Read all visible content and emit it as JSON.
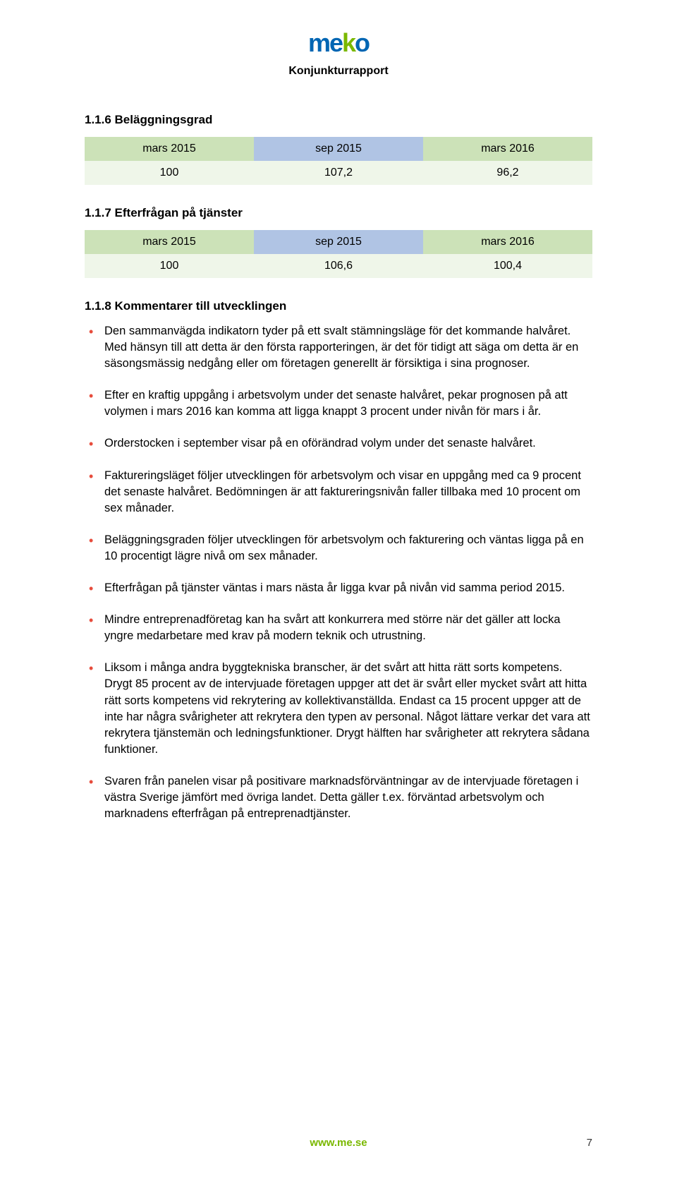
{
  "header": {
    "logo_letters": [
      "m",
      "e",
      "k",
      "o"
    ],
    "report_title": "Konjunkturrapport"
  },
  "section1": {
    "heading": "1.1.6 Beläggningsgrad",
    "columns": [
      "mars 2015",
      "sep 2015",
      "mars 2016"
    ],
    "values": [
      "100",
      "107,2",
      "96,2"
    ],
    "header_bg_outer": "#cce2b8",
    "header_bg_mid": "#b0c4e4",
    "row_bg": "#eff6e9"
  },
  "section2": {
    "heading": "1.1.7 Efterfrågan på tjänster",
    "columns": [
      "mars 2015",
      "sep 2015",
      "mars 2016"
    ],
    "values": [
      "100",
      "106,6",
      "100,4"
    ],
    "header_bg_outer": "#cce2b8",
    "header_bg_mid": "#b0c4e4",
    "row_bg": "#eff6e9"
  },
  "section3": {
    "heading": "1.1.8 Kommentarer till utvecklingen",
    "bullets": [
      "Den sammanvägda indikatorn tyder på ett svalt stämningsläge för det kommande halvåret. Med hänsyn till att detta är den första rapporteringen, är det för tidigt att säga om detta är en säsongsmässig nedgång eller om företagen generellt är försiktiga i sina prognoser.",
      "Efter en kraftig uppgång i arbetsvolym under det senaste halvåret, pekar prognosen på att volymen i mars 2016 kan komma att ligga knappt 3 procent under nivån för mars i år.",
      "Orderstocken i september visar på en oförändrad volym under det senaste halvåret.",
      "Faktureringsläget följer utvecklingen för arbetsvolym och visar en uppgång med ca 9 procent det senaste halvåret. Bedömningen är att faktureringsnivån faller tillbaka med 10 procent om sex månader.",
      "Beläggningsgraden följer utvecklingen för arbetsvolym och fakturering och väntas ligga på en 10 procentigt lägre nivå om sex månader.",
      "Efterfrågan på tjänster väntas i mars nästa år ligga kvar på nivån vid samma period 2015.",
      "Mindre entreprenadföretag kan ha svårt att konkurrera med större när det gäller att locka yngre medarbetare med krav på modern teknik och utrustning.",
      "Liksom i många andra byggtekniska branscher, är det svårt att hitta rätt sorts kompetens. Drygt 85 procent av de intervjuade företagen uppger att det är svårt eller mycket svårt att hitta rätt sorts kompetens vid rekrytering av kollektivanställda. Endast ca 15 procent uppger att de inte har några svårigheter att rekrytera den typen av personal. Något lättare verkar det vara att rekrytera tjänstemän och ledningsfunktioner. Drygt hälften har svårigheter att rekrytera sådana funktioner.",
      "Svaren från panelen visar på positivare marknadsförväntningar av de intervjuade företagen i västra Sverige jämfört med övriga landet. Detta gäller t.ex. förväntad arbetsvolym och marknadens efterfrågan på entreprenadtjänster."
    ],
    "bullet_color": "#e74c3c"
  },
  "footer": {
    "url": "www.me.se",
    "page_number": "7",
    "url_color": "#7ab800"
  }
}
